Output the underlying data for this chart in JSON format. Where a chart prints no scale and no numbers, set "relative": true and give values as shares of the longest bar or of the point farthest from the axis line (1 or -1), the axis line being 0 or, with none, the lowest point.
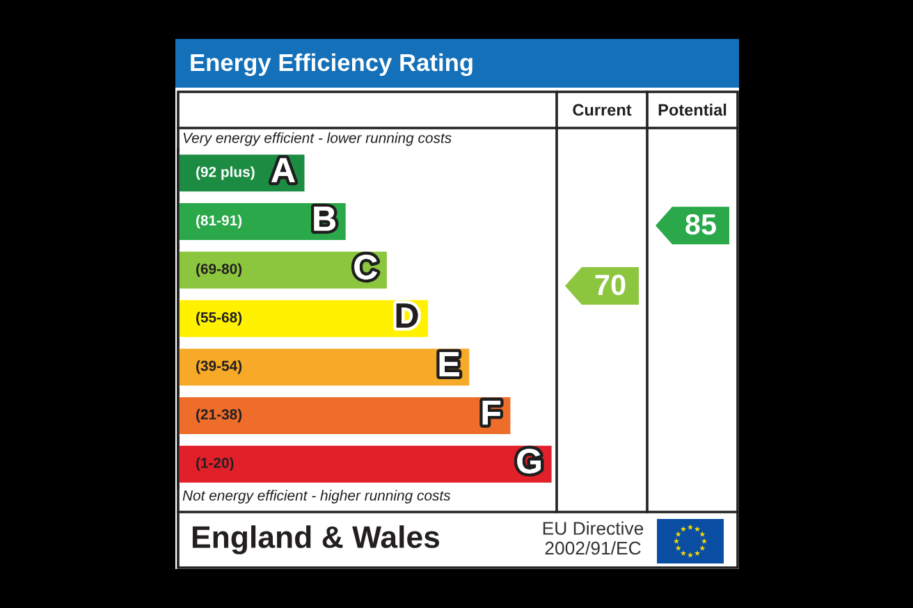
{
  "chart_data": {
    "type": "bar",
    "orientation": "horizontal",
    "relative": true,
    "title": "Energy Efficiency Rating",
    "categories": [
      "(92 plus)",
      "(81-91)",
      "(69-80)",
      "(55-68)",
      "(39-54)",
      "(21-38)",
      "(1-20)"
    ],
    "values": [
      0.34,
      0.45,
      0.56,
      0.67,
      0.78,
      0.89,
      1
    ],
    "colors": [
      "#1c8c43",
      "#2aa84a",
      "#8cc63f",
      "#fff100",
      "#f7a928",
      "#ee6d2b",
      "#e2202a"
    ],
    "annotations": [
      "Very energy efficient - lower running costs",
      "Not energy efficient - higher running costs",
      "Current",
      "Potential",
      "70",
      "85",
      "England & Wales",
      "EU Directive\n2002/91/EC",
      {
        "text": "A",
        "x": 0.34,
        "y": "(92 plus)"
      },
      {
        "text": "B",
        "x": 0.45,
        "y": "(81-91)"
      },
      {
        "text": "C",
        "x": 0.56,
        "y": "(69-80)"
      },
      {
        "text": "D",
        "x": 0.67,
        "y": "(55-68)"
      },
      {
        "text": "E",
        "x": 0.78,
        "y": "(39-54)"
      },
      {
        "text": "F",
        "x": 0.89,
        "y": "(21-38)"
      },
      {
        "text": "G",
        "x": 1,
        "y": "(1-20)"
      }
    ]
  }
}
